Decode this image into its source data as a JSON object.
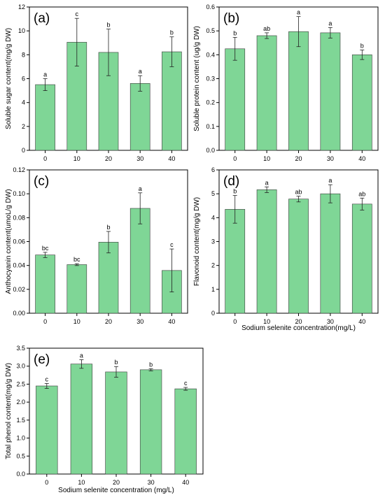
{
  "chart_data": [
    {
      "type": "bar",
      "panel_label": "(a)",
      "categories": [
        "0",
        "10",
        "20",
        "30",
        "40"
      ],
      "values": [
        5.5,
        9.05,
        8.2,
        5.6,
        8.25
      ],
      "errors": [
        0.5,
        2.0,
        1.95,
        0.65,
        1.25
      ],
      "significance": [
        "a",
        "c",
        "b",
        "a",
        "b"
      ],
      "ylabel": "Soluble sugar content(mg/g DW)",
      "xlabel": "",
      "ylim": [
        0,
        12
      ],
      "yticks": [
        "0",
        "2",
        "4",
        "6",
        "8",
        "10",
        "12"
      ]
    },
    {
      "type": "bar",
      "panel_label": "(b)",
      "categories": [
        "0",
        "10",
        "20",
        "30",
        "40"
      ],
      "values": [
        0.425,
        0.48,
        0.497,
        0.492,
        0.4
      ],
      "errors": [
        0.048,
        0.012,
        0.063,
        0.022,
        0.02
      ],
      "significance": [
        "b",
        "ab",
        "a",
        "a",
        "b"
      ],
      "ylabel": "Soluble protein content (ug/g DW)",
      "xlabel": "",
      "ylim": [
        0,
        0.6
      ],
      "yticks": [
        "0.0",
        "0.1",
        "0.2",
        "0.3",
        "0.4",
        "0.5",
        "0.6"
      ]
    },
    {
      "type": "bar",
      "panel_label": "(c)",
      "categories": [
        "0",
        "10",
        "20",
        "30",
        "40"
      ],
      "values": [
        0.0488,
        0.0407,
        0.0595,
        0.0878,
        0.0358
      ],
      "errors": [
        0.0022,
        0.0008,
        0.009,
        0.013,
        0.018
      ],
      "significance": [
        "bc",
        "bc",
        "b",
        "a",
        "c"
      ],
      "ylabel": "Anthocyanin content(umoL/g DW)",
      "xlabel": "",
      "ylim": [
        0,
        0.12
      ],
      "yticks": [
        "0.00",
        "0.02",
        "0.04",
        "0.06",
        "0.08",
        "0.10",
        "0.12"
      ]
    },
    {
      "type": "bar",
      "panel_label": "(d)",
      "categories": [
        "0",
        "10",
        "20",
        "30",
        "40"
      ],
      "values": [
        4.35,
        5.17,
        4.78,
        5.0,
        4.57
      ],
      "errors": [
        0.58,
        0.12,
        0.12,
        0.38,
        0.25
      ],
      "significance": [
        "b",
        "a",
        "ab",
        "a",
        "ab"
      ],
      "ylabel": "Flavonoid content(mg/g DW)",
      "xlabel": "Sodium selenite concentration(mg/L)",
      "ylim": [
        0,
        6
      ],
      "yticks": [
        "0",
        "1",
        "2",
        "3",
        "4",
        "5",
        "6"
      ]
    },
    {
      "type": "bar",
      "panel_label": "(e)",
      "categories": [
        "0",
        "10",
        "20",
        "30",
        "40"
      ],
      "values": [
        2.45,
        3.06,
        2.84,
        2.9,
        2.37
      ],
      "errors": [
        0.07,
        0.12,
        0.15,
        0.03,
        0.04
      ],
      "significance": [
        "c",
        "a",
        "b",
        "b",
        "c"
      ],
      "ylabel": "Total phenol content(mg/g DW)",
      "xlabel": "Sodium selenite concentration (mg/L)",
      "ylim": [
        0,
        3.5
      ],
      "yticks": [
        "0.0",
        "0.5",
        "1.0",
        "1.5",
        "2.0",
        "2.5",
        "3.0",
        "3.5"
      ]
    }
  ]
}
